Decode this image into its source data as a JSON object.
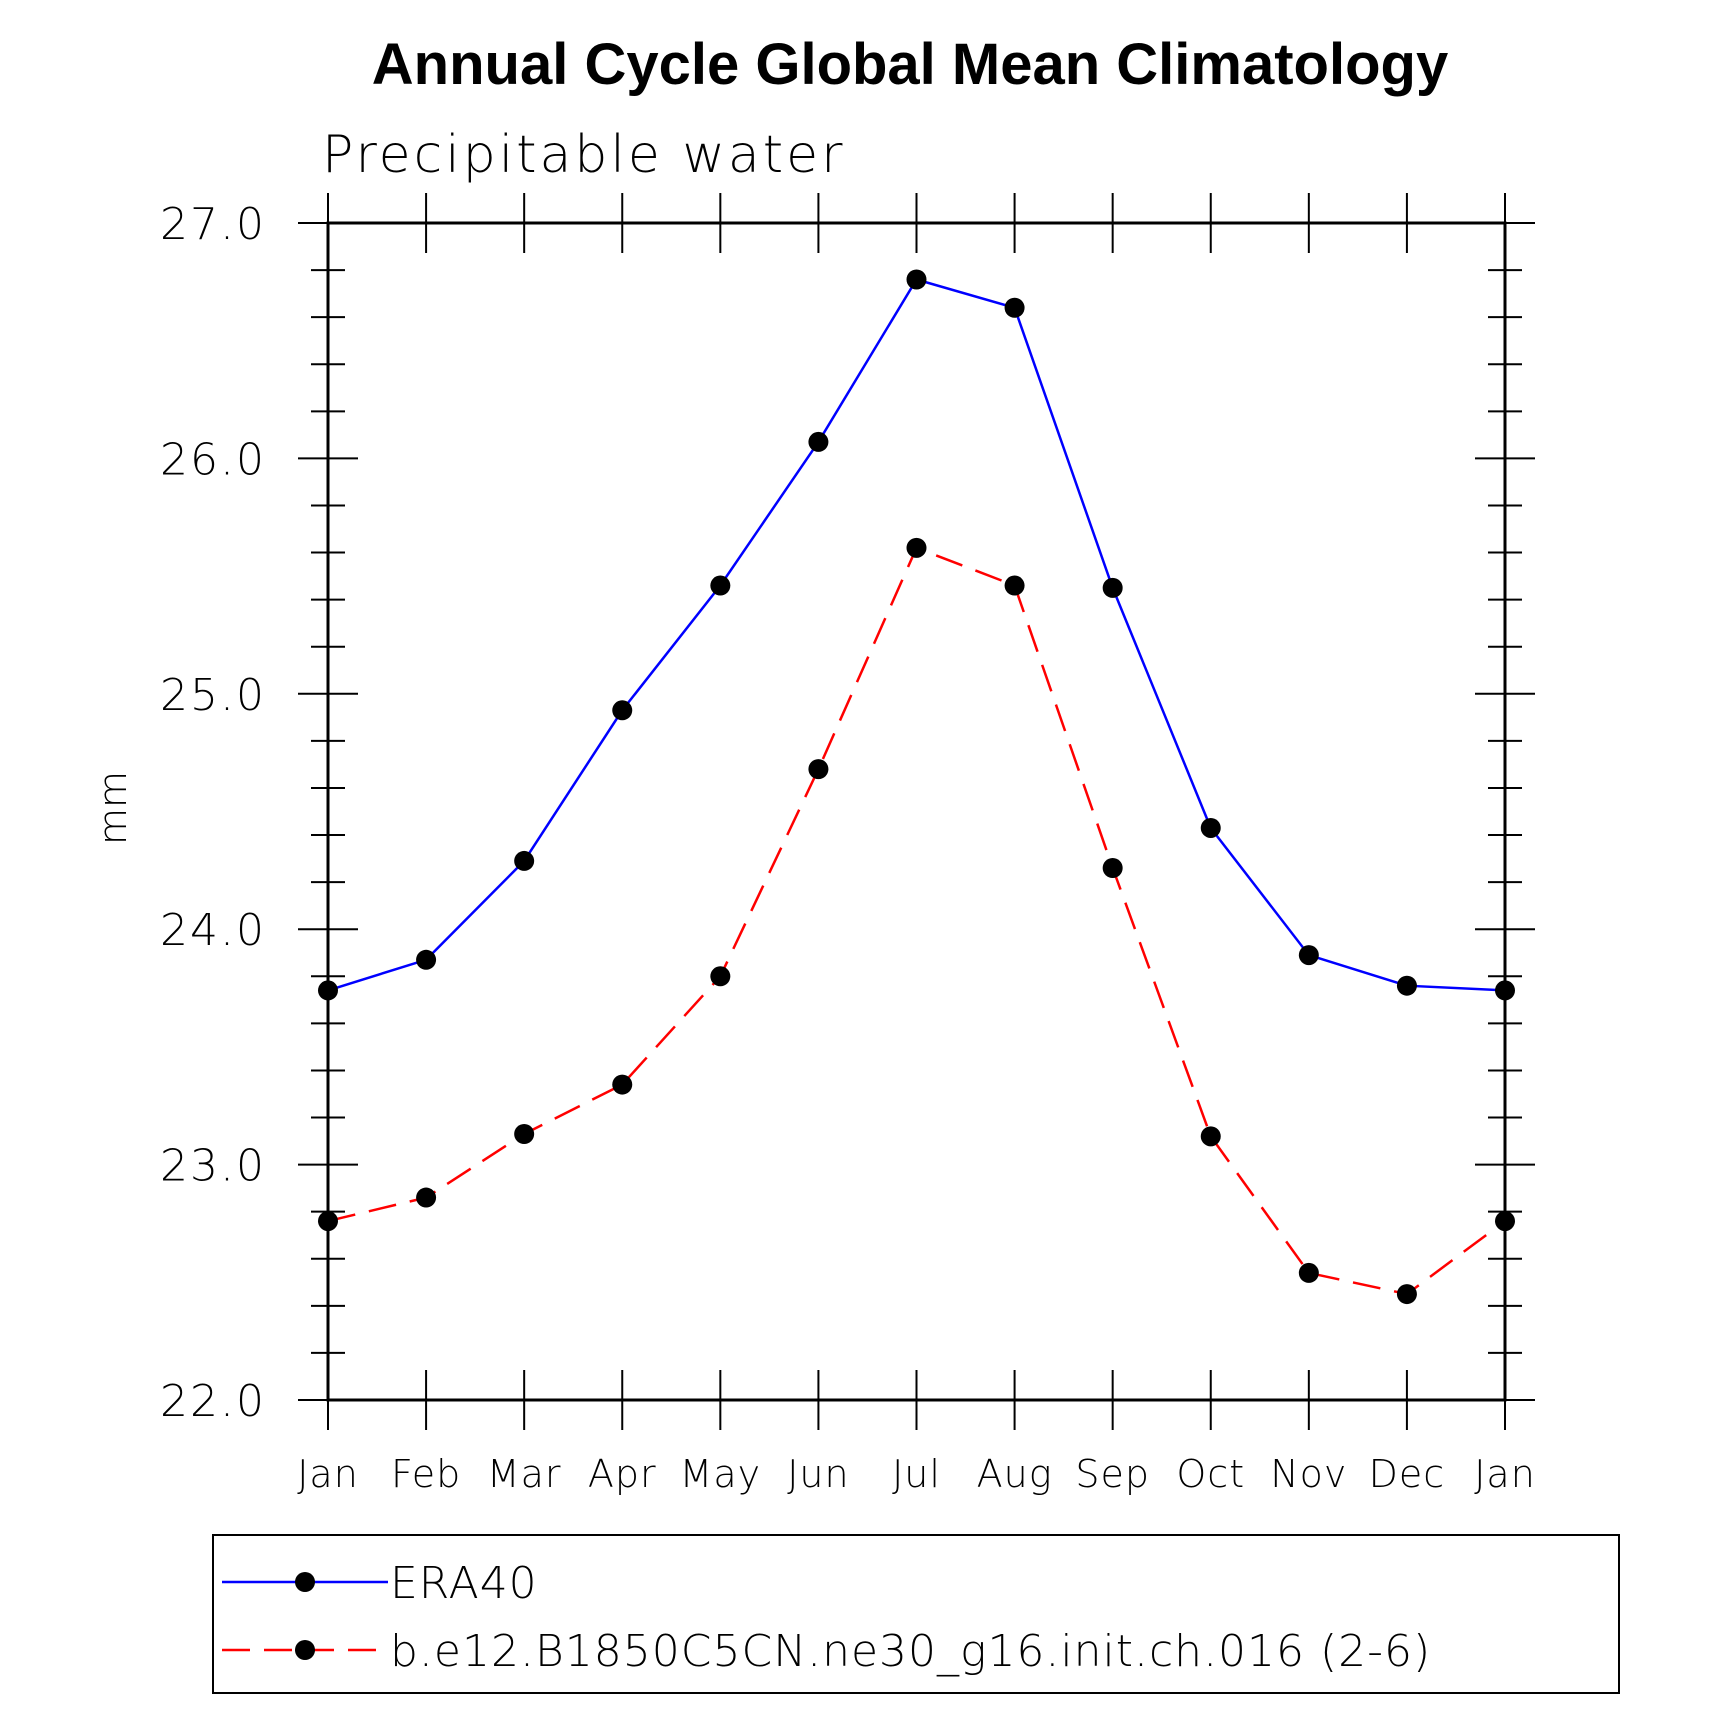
{
  "chart_data": {
    "type": "line",
    "title": "Annual Cycle Global Mean Climatology",
    "subtitle": "Precipitable water",
    "xlabel": "",
    "ylabel": "mm",
    "categories": [
      "Jan",
      "Feb",
      "Mar",
      "Apr",
      "May",
      "Jun",
      "Jul",
      "Aug",
      "Sep",
      "Oct",
      "Nov",
      "Dec",
      "Jan"
    ],
    "ylim": [
      22.0,
      27.0
    ],
    "yticks": [
      "22.0",
      "23.0",
      "24.0",
      "25.0",
      "26.0",
      "27.0"
    ],
    "grid": false,
    "legend_position": "bottom",
    "series": [
      {
        "name": "ERA40",
        "color": "#0000ff",
        "line_style": "solid",
        "marker": "filled-circle",
        "values": [
          23.74,
          23.87,
          24.29,
          24.93,
          25.46,
          26.07,
          26.76,
          26.64,
          25.45,
          24.43,
          23.89,
          23.76,
          23.74
        ]
      },
      {
        "name": "b.e12.B1850C5CN.ne30_g16.init.ch.016 (2-6)",
        "color": "#ff0000",
        "line_style": "dashed",
        "marker": "filled-circle",
        "values": [
          22.76,
          22.86,
          23.13,
          23.34,
          23.8,
          24.68,
          25.62,
          25.46,
          24.26,
          23.12,
          22.54,
          22.45,
          22.76
        ]
      }
    ]
  }
}
